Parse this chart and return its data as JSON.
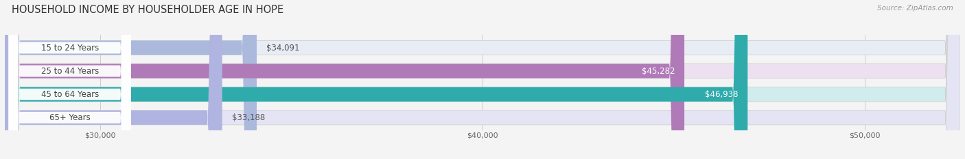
{
  "title": "HOUSEHOLD INCOME BY HOUSEHOLDER AGE IN HOPE",
  "source": "Source: ZipAtlas.com",
  "categories": [
    "15 to 24 Years",
    "25 to 44 Years",
    "45 to 64 Years",
    "65+ Years"
  ],
  "values": [
    34091,
    45282,
    46938,
    33188
  ],
  "bar_colors": [
    "#aab9dc",
    "#b07ab8",
    "#2eabaa",
    "#b0b4e0"
  ],
  "bar_bg_colors": [
    "#e8ecf5",
    "#ede0f0",
    "#d0ecec",
    "#e4e4f4"
  ],
  "value_labels": [
    "$34,091",
    "$45,282",
    "$46,938",
    "$33,188"
  ],
  "value_label_dark": [
    true,
    false,
    false,
    true
  ],
  "xmin": 27500,
  "xmax": 52500,
  "xticks": [
    30000,
    40000,
    50000
  ],
  "xtick_labels": [
    "$30,000",
    "$40,000",
    "$50,000"
  ],
  "title_fontsize": 10.5,
  "source_fontsize": 7.5,
  "label_fontsize": 8.5,
  "value_fontsize": 8.5,
  "tick_fontsize": 8,
  "bar_height": 0.62,
  "background_color": "#f4f4f4",
  "pill_text_color": "#444444",
  "dark_value_color": "#555555",
  "light_value_color": "#ffffff",
  "grid_color": "#cccccc"
}
